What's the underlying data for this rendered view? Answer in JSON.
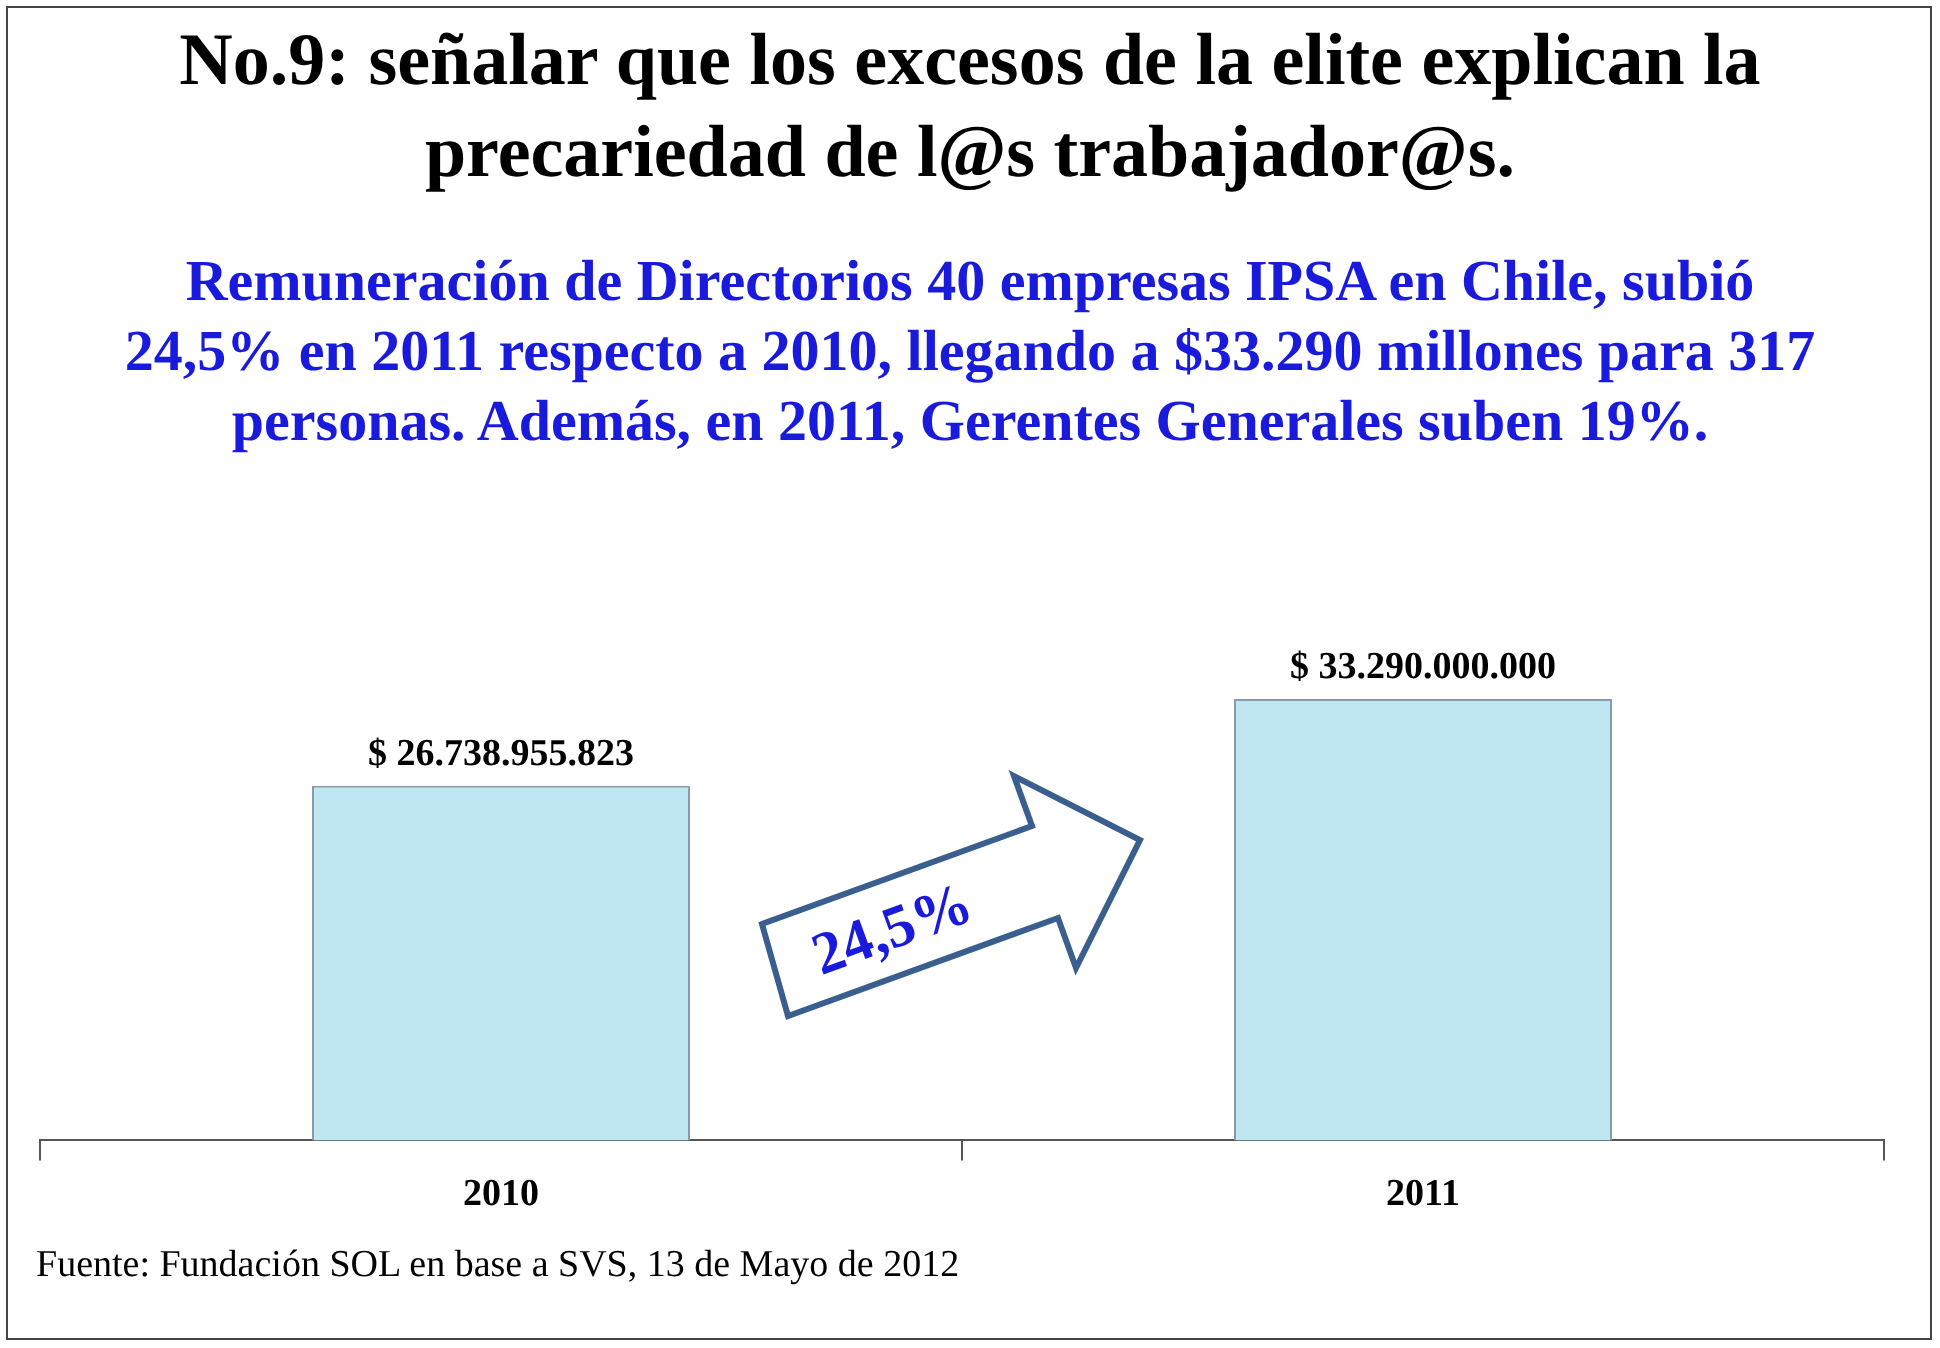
{
  "chart_data": {
    "type": "bar",
    "title": "No.9: señalar que los excesos de la elite explican la precariedad de l@s trabajador@s.",
    "subtitle": "Remuneración de Directorios 40 empresas IPSA en Chile, subió 24,5% en 2011 respecto a 2010, llegando a $33.290 millones para 317 personas. Además, en 2011, Gerentes Generales suben 19%.",
    "categories": [
      "2010",
      "2011"
    ],
    "values": [
      26738955823,
      33290000000
    ],
    "value_labels": [
      "$ 26.738.955.823",
      "$ 33.290.000.000"
    ],
    "color": "#bfe7f2",
    "tick_labels": "x",
    "grid": false,
    "legend": false,
    "annotations": [
      "24,5%",
      "Fuente: Fundación SOL en base a SVS, 13 de Mayo de 2012"
    ]
  }
}
